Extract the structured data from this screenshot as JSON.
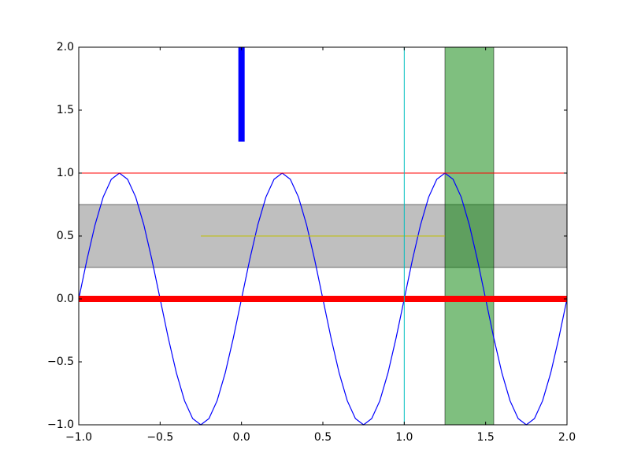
{
  "chart_data": {
    "type": "line",
    "x": [
      -1,
      -0.95,
      -0.9,
      -0.85,
      -0.8,
      -0.75,
      -0.7,
      -0.65,
      -0.6,
      -0.55,
      -0.5,
      -0.45,
      -0.4,
      -0.35,
      -0.3,
      -0.25,
      -0.2,
      -0.15,
      -0.1,
      -0.05,
      0,
      0.05,
      0.1,
      0.15,
      0.2,
      0.25,
      0.3,
      0.35,
      0.4,
      0.45,
      0.5,
      0.55,
      0.6,
      0.65,
      0.7,
      0.75,
      0.8,
      0.85,
      0.9,
      0.95,
      1,
      1.05,
      1.1,
      1.15,
      1.2,
      1.25,
      1.3,
      1.35,
      1.4,
      1.45,
      1.5,
      1.55,
      1.6,
      1.65,
      1.7,
      1.75,
      1.8,
      1.85,
      1.9,
      1.95,
      2
    ],
    "series": [
      {
        "color": "#0000ff",
        "values": [
          0,
          0.309,
          0.588,
          0.809,
          0.951,
          1,
          0.951,
          0.809,
          0.588,
          0.309,
          0,
          -0.309,
          -0.588,
          -0.809,
          -0.951,
          -1,
          -0.951,
          -0.809,
          -0.588,
          -0.309,
          0,
          0.309,
          0.588,
          0.809,
          0.951,
          1,
          0.951,
          0.809,
          0.588,
          0.309,
          0,
          -0.309,
          -0.588,
          -0.809,
          -0.951,
          -1,
          -0.951,
          -0.809,
          -0.588,
          -0.309,
          0,
          0.309,
          0.588,
          0.809,
          0.951,
          1,
          0.951,
          0.809,
          0.588,
          0.309,
          0,
          -0.309,
          -0.588,
          -0.809,
          -0.951,
          -1,
          -0.951,
          -0.809,
          -0.588,
          -0.309,
          0
        ]
      }
    ],
    "hspans": [
      {
        "y": [
          0.25,
          0.75
        ],
        "color": "#808080",
        "opacity": 0.5
      }
    ],
    "vspans": [
      {
        "x": [
          1.25,
          1.55
        ],
        "color": "#008000",
        "opacity": 0.5
      }
    ],
    "hlines": [
      {
        "y": 0,
        "color": "#ff0000",
        "style": "thick"
      },
      {
        "y": 1,
        "color": "#ff0000",
        "style": "thin"
      },
      {
        "y": 0.5,
        "x": [
          -0.25,
          1.25
        ],
        "color": "#bfbf00",
        "style": "thin"
      }
    ],
    "vlines": [
      {
        "x": 1,
        "color": "#00bfbf",
        "style": "thin"
      },
      {
        "x": 0,
        "y": [
          1.25,
          2
        ],
        "color": "#0000ff",
        "style": "thick"
      }
    ],
    "xlim": [
      -1,
      2
    ],
    "ylim": [
      -1,
      2
    ],
    "xticks": [
      {
        "value": -1,
        "label": "−1.0"
      },
      {
        "value": -0.5,
        "label": "−0.5"
      },
      {
        "value": 0,
        "label": "0.0"
      },
      {
        "value": 0.5,
        "label": "0.5"
      },
      {
        "value": 1,
        "label": "1.0"
      },
      {
        "value": 1.5,
        "label": "1.5"
      },
      {
        "value": 2,
        "label": "2.0"
      }
    ],
    "yticks": [
      {
        "value": -1,
        "label": "−1.0"
      },
      {
        "value": -0.5,
        "label": "−0.5"
      },
      {
        "value": 0,
        "label": "0.0"
      },
      {
        "value": 0.5,
        "label": "0.5"
      },
      {
        "value": 1,
        "label": "1.0"
      },
      {
        "value": 1.5,
        "label": "1.5"
      },
      {
        "value": 2,
        "label": "2.0"
      }
    ],
    "grid": false
  }
}
